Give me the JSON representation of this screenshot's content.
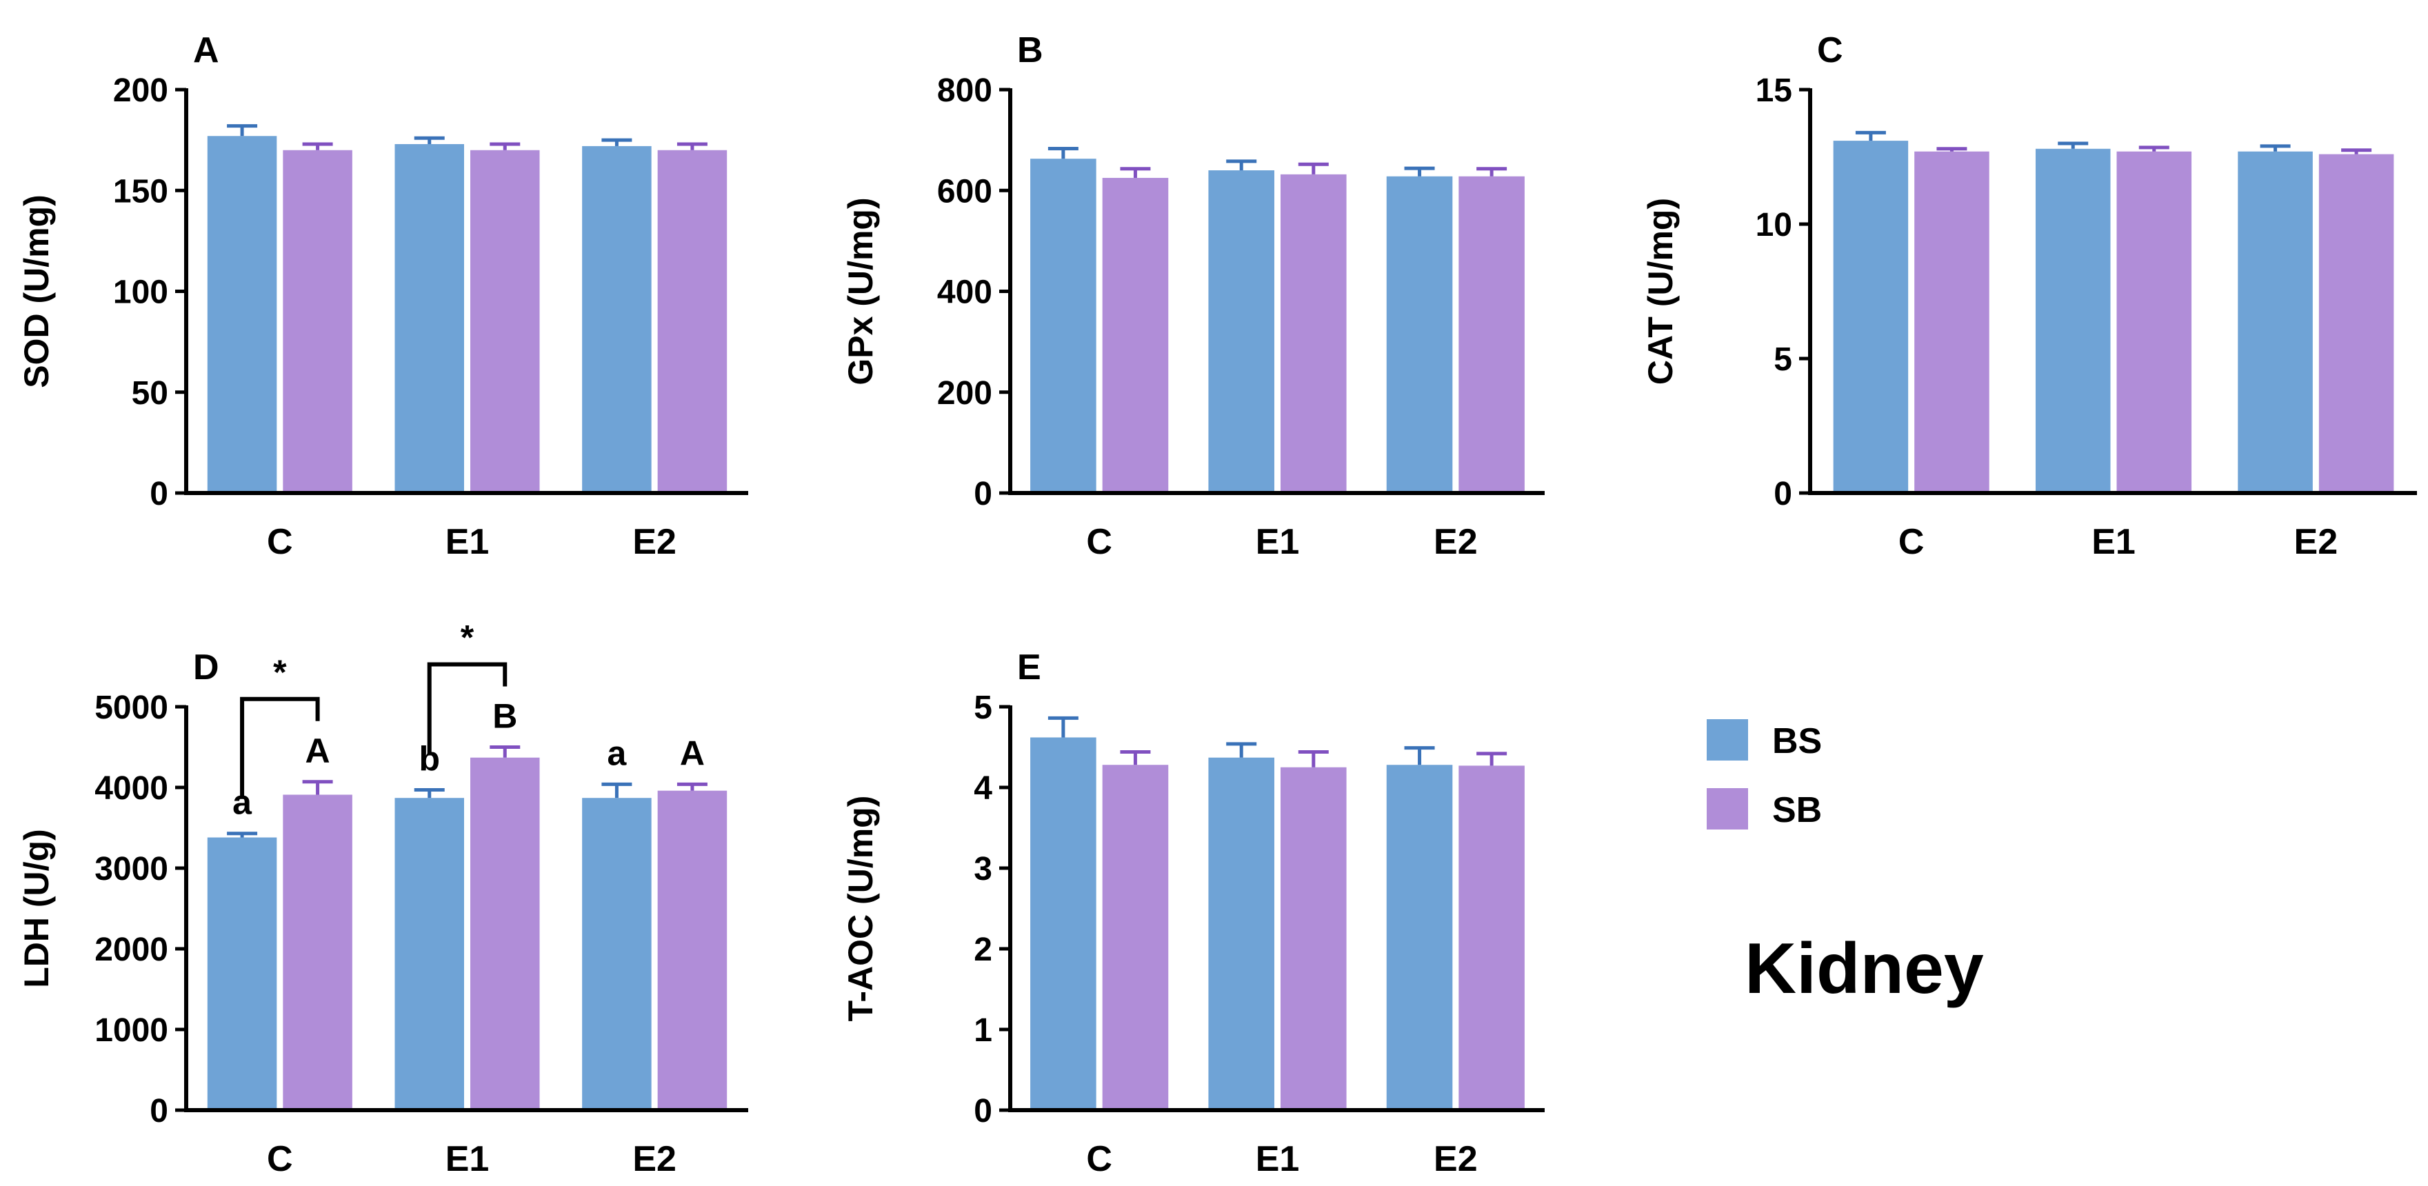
{
  "title": "Kidney",
  "legend": [
    {
      "label": "BS",
      "color": "#6fa3d6"
    },
    {
      "label": "SB",
      "color": "#b08dd8"
    }
  ],
  "colors": {
    "BS": "#6fa3d6",
    "SB": "#b08dd8",
    "BS_err": "#3a72b8",
    "SB_err": "#8050c0"
  },
  "chart_data": [
    {
      "type": "bar",
      "panel": "A",
      "ylabel": "SOD (U/mg)",
      "categories": [
        "C",
        "E1",
        "E2"
      ],
      "ylim": [
        0,
        200
      ],
      "yticks": [
        0,
        50,
        100,
        150,
        200
      ],
      "series": [
        {
          "name": "BS",
          "values": [
            177,
            173,
            172
          ],
          "errors": [
            5,
            3,
            3
          ]
        },
        {
          "name": "SB",
          "values": [
            170,
            170,
            170
          ],
          "errors": [
            3,
            3,
            3
          ]
        }
      ]
    },
    {
      "type": "bar",
      "panel": "B",
      "ylabel": "GPx (U/mg)",
      "categories": [
        "C",
        "E1",
        "E2"
      ],
      "ylim": [
        0,
        800
      ],
      "yticks": [
        0,
        200,
        400,
        600,
        800
      ],
      "series": [
        {
          "name": "BS",
          "values": [
            663,
            640,
            628
          ],
          "errors": [
            20,
            18,
            16
          ]
        },
        {
          "name": "SB",
          "values": [
            625,
            632,
            628
          ],
          "errors": [
            18,
            20,
            15
          ]
        }
      ]
    },
    {
      "type": "bar",
      "panel": "C",
      "ylabel": "CAT  (U/mg)",
      "categories": [
        "C",
        "E1",
        "E2"
      ],
      "ylim": [
        0,
        15
      ],
      "yticks": [
        0,
        5,
        10,
        15
      ],
      "series": [
        {
          "name": "BS",
          "values": [
            13.1,
            12.8,
            12.7
          ],
          "errors": [
            0.3,
            0.2,
            0.2
          ]
        },
        {
          "name": "SB",
          "values": [
            12.7,
            12.7,
            12.6
          ],
          "errors": [
            0.1,
            0.15,
            0.15
          ]
        }
      ]
    },
    {
      "type": "bar",
      "panel": "D",
      "ylabel": "LDH  (U/g)",
      "categories": [
        "C",
        "E1",
        "E2"
      ],
      "ylim": [
        0,
        5000
      ],
      "yticks": [
        0,
        1000,
        2000,
        3000,
        4000,
        5000
      ],
      "series": [
        {
          "name": "BS",
          "values": [
            3380,
            3870,
            3870
          ],
          "errors": [
            50,
            100,
            170
          ],
          "letters": [
            "a",
            "b",
            "a"
          ]
        },
        {
          "name": "SB",
          "values": [
            3910,
            4370,
            3960
          ],
          "errors": [
            160,
            130,
            80
          ],
          "letters": [
            "A",
            "B",
            "A"
          ]
        }
      ],
      "significance": [
        {
          "category": "C",
          "label": "*"
        },
        {
          "category": "E1",
          "label": "*"
        }
      ]
    },
    {
      "type": "bar",
      "panel": "E",
      "ylabel": "T-AOC (U/mg)",
      "categories": [
        "C",
        "E1",
        "E2"
      ],
      "ylim": [
        0,
        5
      ],
      "yticks": [
        0,
        1,
        2,
        3,
        4,
        5
      ],
      "series": [
        {
          "name": "BS",
          "values": [
            4.62,
            4.37,
            4.28
          ],
          "errors": [
            0.24,
            0.17,
            0.21
          ]
        },
        {
          "name": "SB",
          "values": [
            4.28,
            4.25,
            4.27
          ],
          "errors": [
            0.16,
            0.19,
            0.15
          ]
        }
      ]
    }
  ]
}
